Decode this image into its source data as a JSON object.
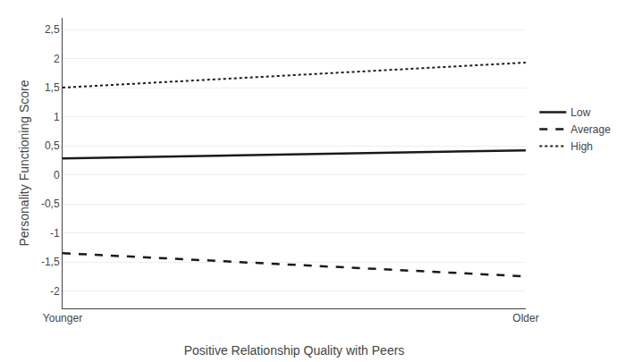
{
  "chart_data": {
    "type": "line",
    "categories": [
      "Younger",
      "Older"
    ],
    "series": [
      {
        "name": "Low",
        "color": "#1a1a1a",
        "line_style": "solid",
        "values": [
          0.28,
          0.42
        ]
      },
      {
        "name": "Average",
        "color": "#1a1a1a",
        "line_style": "dash",
        "values": [
          -1.35,
          -1.75
        ]
      },
      {
        "name": "High",
        "color": "#1a1a1a",
        "line_style": "dot",
        "values": [
          1.5,
          1.93
        ]
      }
    ],
    "xlabel": "Positive Relationship Quality with Peers",
    "ylabel": "Personality Functioning Score",
    "ylim": [
      -2.3,
      2.7
    ],
    "yticks": [
      -2,
      {
        "value": -1.5,
        "label": "-1,5"
      },
      -1,
      {
        "value": -0.5,
        "label": "-0,5"
      },
      0,
      {
        "value": 0.5,
        "label": "0,5"
      },
      1,
      {
        "value": 1.5,
        "label": "1,5"
      },
      2,
      {
        "value": 2.5,
        "label": "2,5"
      }
    ],
    "grid": true,
    "legend": "right"
  }
}
